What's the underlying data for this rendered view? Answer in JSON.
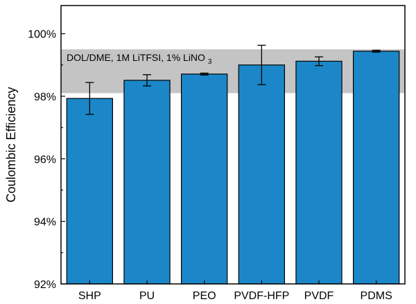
{
  "chart_data": {
    "type": "bar",
    "categories": [
      "SHP",
      "PU",
      "PEO",
      "PVDF-HFP",
      "PVDF",
      "PDMS"
    ],
    "values": [
      97.93,
      98.51,
      98.71,
      99.0,
      99.12,
      99.44
    ],
    "errors": [
      0.51,
      0.18,
      0.03,
      0.63,
      0.14,
      0.03
    ],
    "ylabel": "Coulombic Efficiency",
    "xlabel": "",
    "ylim": [
      92,
      100.9
    ],
    "yticks": [
      92,
      94,
      96,
      98,
      100
    ],
    "ytick_labels": [
      "92%",
      "94%",
      "96%",
      "98%",
      "100%"
    ],
    "reference_band": {
      "y_range": [
        98.1,
        99.5
      ],
      "label_main": "DOL/DME, 1M LiTFSI, 1% LiNO",
      "label_sub": "3"
    },
    "colors": {
      "bar": "#1b87c8",
      "bar_edge": "#000000",
      "band": "#c4c4c4"
    }
  }
}
